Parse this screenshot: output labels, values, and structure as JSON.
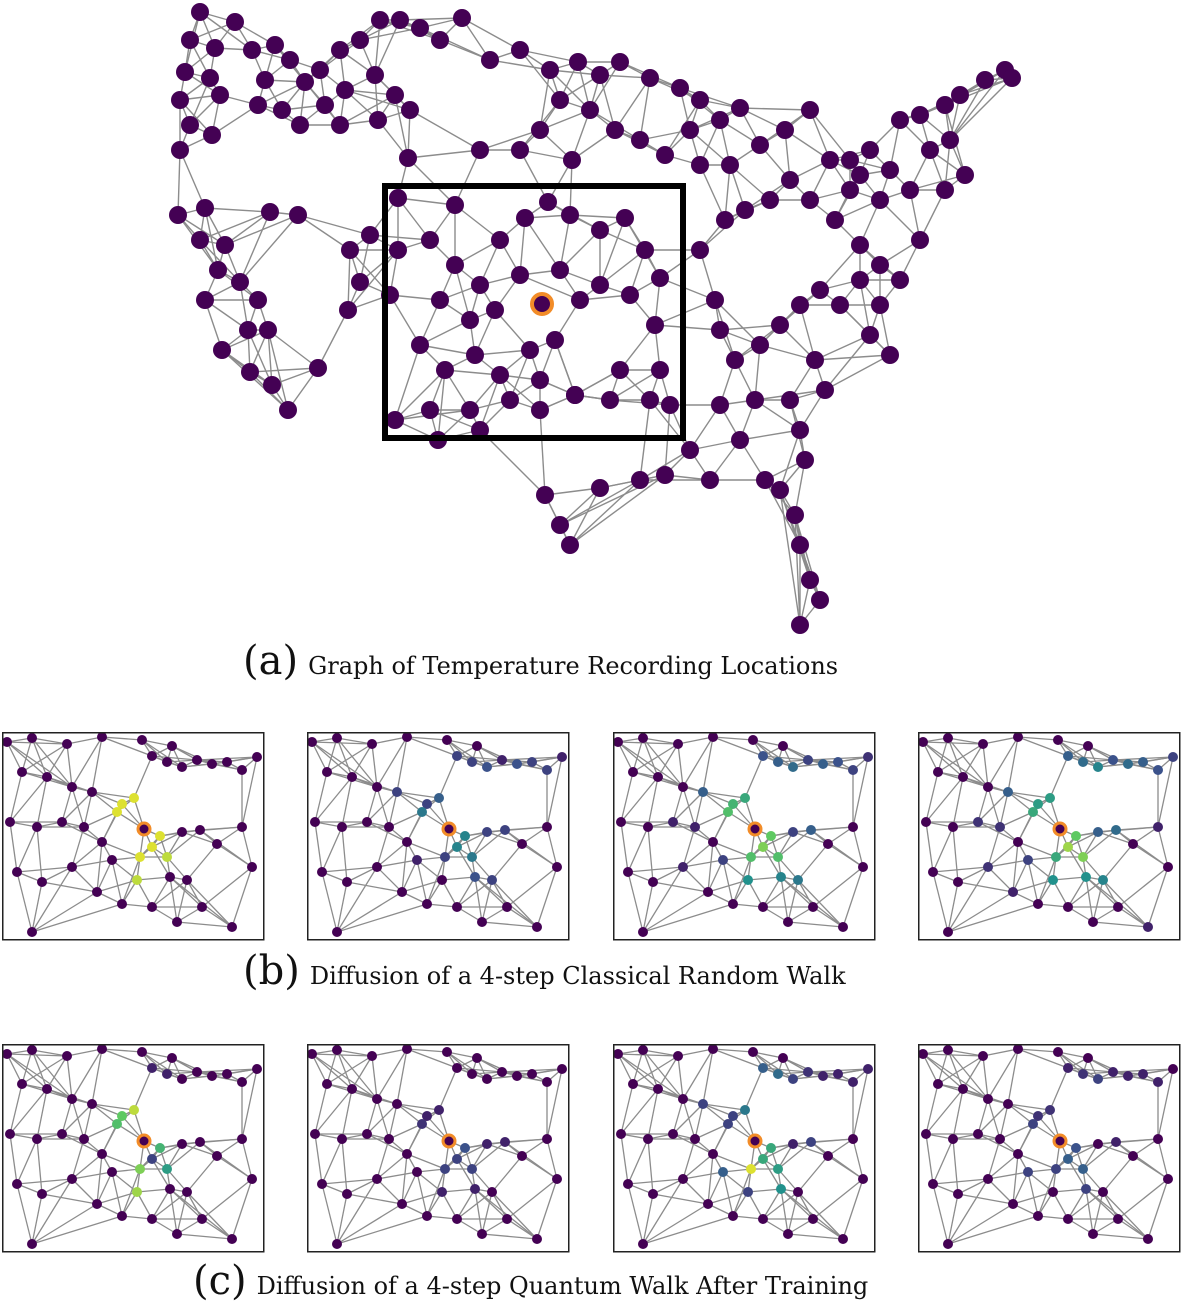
{
  "captions": {
    "a_letter": "(a)",
    "a_text": "Graph of Temperature Recording Locations",
    "b_letter": "(b)",
    "b_text": "Diffusion of a 4-step Classical Random Walk",
    "c_letter": "(c)",
    "c_text": "Diffusion of a 4-step Quantum Walk After Training"
  },
  "colors": {
    "node": "#440154",
    "edge": "#8c8c8c",
    "source_ring": "#f28c28",
    "zoom_box": "#000000",
    "viridis": [
      "#440154",
      "#3b528b",
      "#21918c",
      "#5ec962",
      "#fde725"
    ]
  },
  "panels": {
    "classical": [
      [
        0.0,
        0.0,
        0.0,
        0.0,
        0.0,
        0.0,
        0.0,
        0.0,
        0.0,
        0.0,
        0.0,
        0.0,
        0.0,
        0.0,
        0.0,
        0.0,
        0.0,
        0.0,
        0.95,
        0.95,
        0.95,
        1.0,
        0.95,
        0.95,
        0.9,
        0.95,
        0.9,
        0.0,
        0.0,
        0.0,
        0.0,
        0.0,
        0.0,
        0.0,
        0.0,
        0.0,
        0.0,
        0.0,
        0.0,
        0.0,
        0.0,
        0.0,
        0.0,
        0.0,
        0.0,
        0.0,
        0.0,
        0.0,
        0.0,
        0.0
      ],
      [
        0.0,
        0.0,
        0.0,
        0.0,
        0.0,
        0.0,
        0.2,
        0.2,
        0.25,
        0.1,
        0.25,
        0.2,
        0.2,
        0.1,
        0.0,
        0.0,
        0.0,
        0.2,
        0.2,
        0.3,
        0.4,
        0.0,
        0.45,
        0.45,
        0.4,
        0.2,
        0.0,
        0.1,
        0.0,
        0.0,
        0.0,
        0.0,
        0.0,
        0.2,
        0.2,
        0.0,
        0.0,
        0.0,
        0.0,
        0.0,
        0.0,
        0.0,
        0.0,
        0.0,
        0.0,
        0.0,
        0.0,
        0.25,
        0.2,
        0.0
      ],
      [
        0.0,
        0.0,
        0.0,
        0.0,
        0.0,
        0.0,
        0.25,
        0.3,
        0.35,
        0.2,
        0.3,
        0.25,
        0.2,
        0.15,
        0.0,
        0.0,
        0.0,
        0.3,
        0.65,
        0.6,
        0.7,
        0.7,
        0.75,
        0.8,
        0.7,
        0.7,
        0.5,
        0.2,
        0.0,
        0.0,
        0.1,
        0.1,
        0.0,
        0.2,
        0.3,
        0.0,
        0.0,
        0.0,
        0.0,
        0.0,
        0.1,
        0.0,
        0.0,
        0.0,
        0.0,
        0.0,
        0.0,
        0.45,
        0.4,
        0.0
      ],
      [
        0.0,
        0.0,
        0.0,
        0.0,
        0.0,
        0.0,
        0.3,
        0.35,
        0.45,
        0.25,
        0.35,
        0.3,
        0.25,
        0.2,
        0.0,
        0.0,
        0.0,
        0.3,
        0.55,
        0.55,
        0.6,
        0.65,
        0.75,
        0.85,
        0.8,
        0.6,
        0.5,
        0.2,
        0.0,
        0.0,
        0.15,
        0.15,
        0.0,
        0.3,
        0.35,
        0.0,
        0.1,
        0.0,
        0.0,
        0.0,
        0.15,
        0.1,
        0.0,
        0.0,
        0.0,
        0.0,
        0.1,
        0.5,
        0.45,
        0.0
      ]
    ],
    "quantum": [
      [
        0.0,
        0.0,
        0.0,
        0.0,
        0.0,
        0.0,
        0.1,
        0.1,
        0.0,
        0.0,
        0.0,
        0.0,
        0.0,
        0.0,
        0.0,
        0.0,
        0.0,
        0.0,
        0.75,
        0.9,
        0.7,
        0.6,
        0.65,
        0.2,
        0.55,
        0.8,
        0.85,
        0.0,
        0.0,
        0.0,
        0.0,
        0.0,
        0.0,
        0.0,
        0.0,
        0.0,
        0.0,
        0.0,
        0.0,
        0.0,
        0.0,
        0.0,
        0.0,
        0.0,
        0.0,
        0.0,
        0.0,
        0.0,
        0.0,
        0.0
      ],
      [
        0.0,
        0.0,
        0.0,
        0.0,
        0.0,
        0.0,
        0.0,
        0.0,
        0.0,
        0.0,
        0.0,
        0.0,
        0.0,
        0.0,
        0.0,
        0.0,
        0.0,
        0.0,
        0.1,
        0.1,
        0.15,
        0.2,
        0.25,
        0.2,
        0.2,
        0.2,
        0.1,
        0.0,
        0.0,
        0.0,
        0.0,
        0.0,
        0.0,
        0.1,
        0.1,
        0.0,
        0.0,
        0.0,
        0.0,
        0.0,
        0.0,
        0.0,
        0.0,
        0.0,
        0.0,
        0.0,
        0.0,
        0.1,
        0.0,
        0.0
      ],
      [
        0.0,
        0.0,
        0.0,
        0.0,
        0.0,
        0.0,
        0.3,
        0.35,
        0.2,
        0.15,
        0.1,
        0.1,
        0.1,
        0.1,
        0.0,
        0.0,
        0.0,
        0.2,
        0.2,
        0.4,
        0.2,
        0.0,
        0.6,
        0.6,
        0.55,
        0.95,
        0.2,
        0.3,
        0.0,
        0.0,
        0.0,
        0.0,
        0.0,
        0.1,
        0.2,
        0.0,
        0.0,
        0.0,
        0.0,
        0.0,
        0.0,
        0.0,
        0.0,
        0.0,
        0.0,
        0.0,
        0.0,
        0.5,
        0.0,
        0.0
      ],
      [
        0.0,
        0.0,
        0.0,
        0.0,
        0.0,
        0.0,
        0.1,
        0.15,
        0.2,
        0.1,
        0.1,
        0.1,
        0.1,
        0.0,
        0.0,
        0.0,
        0.0,
        0.0,
        0.15,
        0.15,
        0.2,
        0.0,
        0.25,
        0.3,
        0.3,
        0.2,
        0.0,
        0.2,
        0.0,
        0.0,
        0.0,
        0.0,
        0.0,
        0.0,
        0.1,
        0.0,
        0.0,
        0.0,
        0.0,
        0.0,
        0.0,
        0.0,
        0.0,
        0.0,
        0.0,
        0.0,
        0.0,
        0.2,
        0.0,
        0.0
      ]
    ]
  }
}
